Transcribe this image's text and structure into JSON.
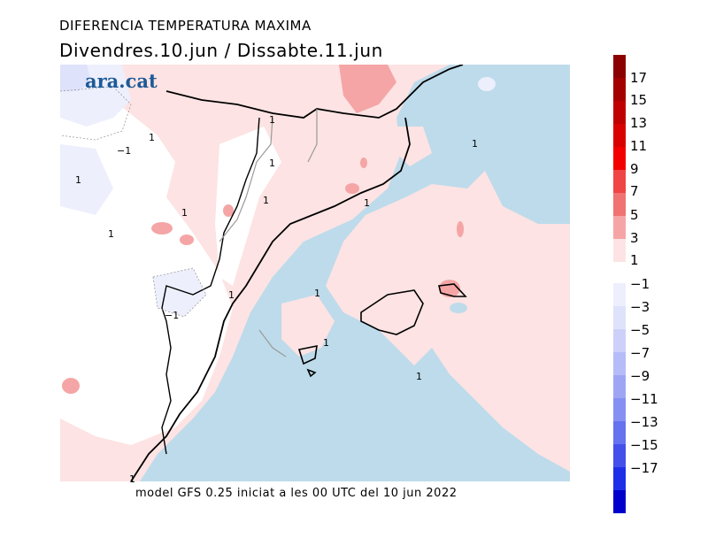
{
  "title": "DIFERENCIA TEMPERATURA MAXIMA",
  "subtitle": "Divendres.10.jun / Dissabte.11.jun",
  "caption": "model GFS 0.25 iniciat a les 00 UTC del 10 jun 2022",
  "logo": "ara.cat",
  "contour_labels": [
    "1",
    "1",
    "−1",
    "1",
    "1",
    "1",
    "1",
    "1",
    "1",
    "1",
    "1",
    "−1",
    "1",
    "1",
    "1",
    "1"
  ],
  "colorbar": {
    "positive_labels": [
      "17",
      "15",
      "13",
      "11",
      "9",
      "7",
      "5",
      "3",
      "1"
    ],
    "negative_labels": [
      "−1",
      "−3",
      "−5",
      "−7",
      "−9",
      "−11",
      "−13",
      "−15",
      "−17"
    ],
    "positive_colors": [
      "#8b0000",
      "#a30000",
      "#bf0000",
      "#d90000",
      "#f20000",
      "#f04545",
      "#f07272",
      "#f5a5a5",
      "#fde3e3"
    ],
    "negative_colors": [
      "#edeffd",
      "#dfe2fb",
      "#cdd1fa",
      "#b6bcf7",
      "#9ea6f4",
      "#8690f2",
      "#6673ee",
      "#4450ea",
      "#1e2fe8",
      "#0000cc"
    ]
  },
  "map_colors": {
    "sea": "#bddbeb",
    "land_neutral": "#ffffff",
    "warm_1": "#fde3e3",
    "warm_3": "#f5a5a5",
    "cool_1": "#edeffd",
    "cool_3": "#dfe2fb"
  }
}
